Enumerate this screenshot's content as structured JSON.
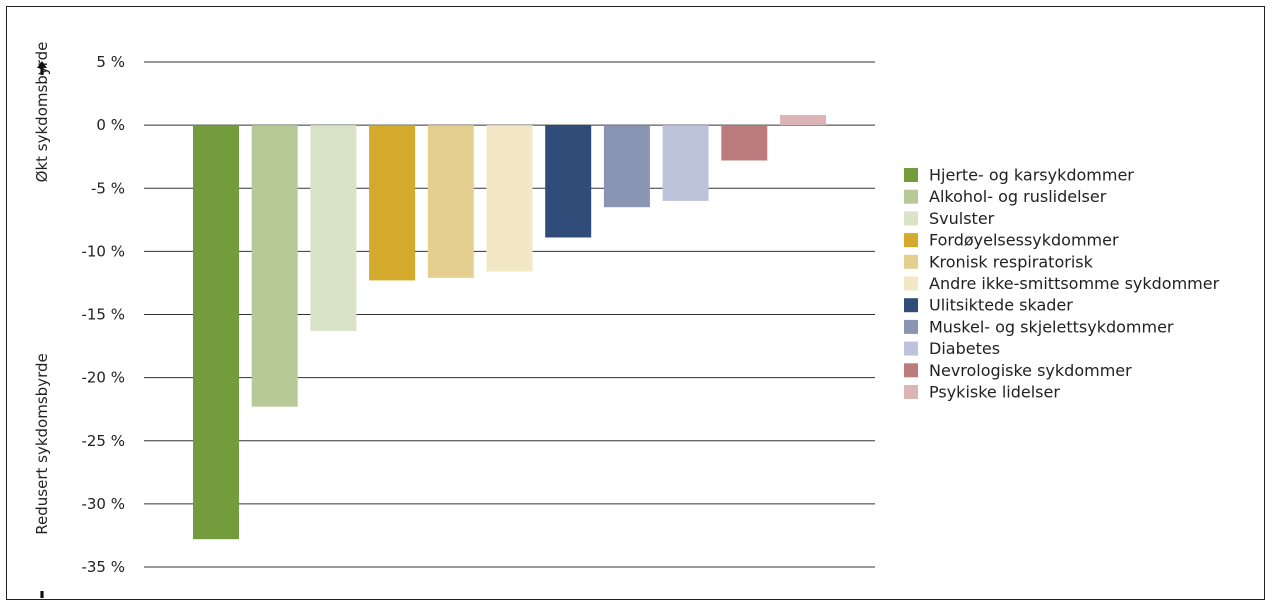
{
  "chart_data": {
    "type": "bar",
    "title": "",
    "xlabel": "",
    "ylabel_up": "Økt sykdomsbyrde",
    "ylabel_down": "Redusert sykdomsbyrde",
    "ylim": [
      -35,
      5
    ],
    "yticks": [
      5,
      0,
      -5,
      -10,
      -15,
      -20,
      -25,
      -30,
      -35
    ],
    "ytick_labels": [
      "5 %",
      "0 %",
      "-5 %",
      "-10 %",
      "-15 %",
      "-20 %",
      "-25 %",
      "-30 %",
      "-35 %"
    ],
    "grid": true,
    "legend_position": "right",
    "categories": [
      "Hjerte- og karsykdommer",
      "Alkohol- og ruslidelser",
      "Svulster",
      "Fordøyelsessykdommer",
      "Kronisk respiratorisk",
      "Andre ikke-smittsomme sykdommer",
      "Ulitsiktede skader",
      "Muskel- og skjelettsykdommer",
      "Diabetes",
      "Nevrologiske sykdommer",
      "Psykiske lidelser"
    ],
    "values": [
      -32.8,
      -22.3,
      -16.3,
      -12.3,
      -12.1,
      -11.6,
      -8.9,
      -6.5,
      -6.0,
      -2.8,
      0.8
    ],
    "colors": [
      "#739d3d",
      "#b7c996",
      "#d9e3c8",
      "#d4aa2c",
      "#e5cf90",
      "#f2e8c6",
      "#2f4d78",
      "#8995b3",
      "#bdc3da",
      "#bc7b7c",
      "#dcb6b6"
    ]
  }
}
